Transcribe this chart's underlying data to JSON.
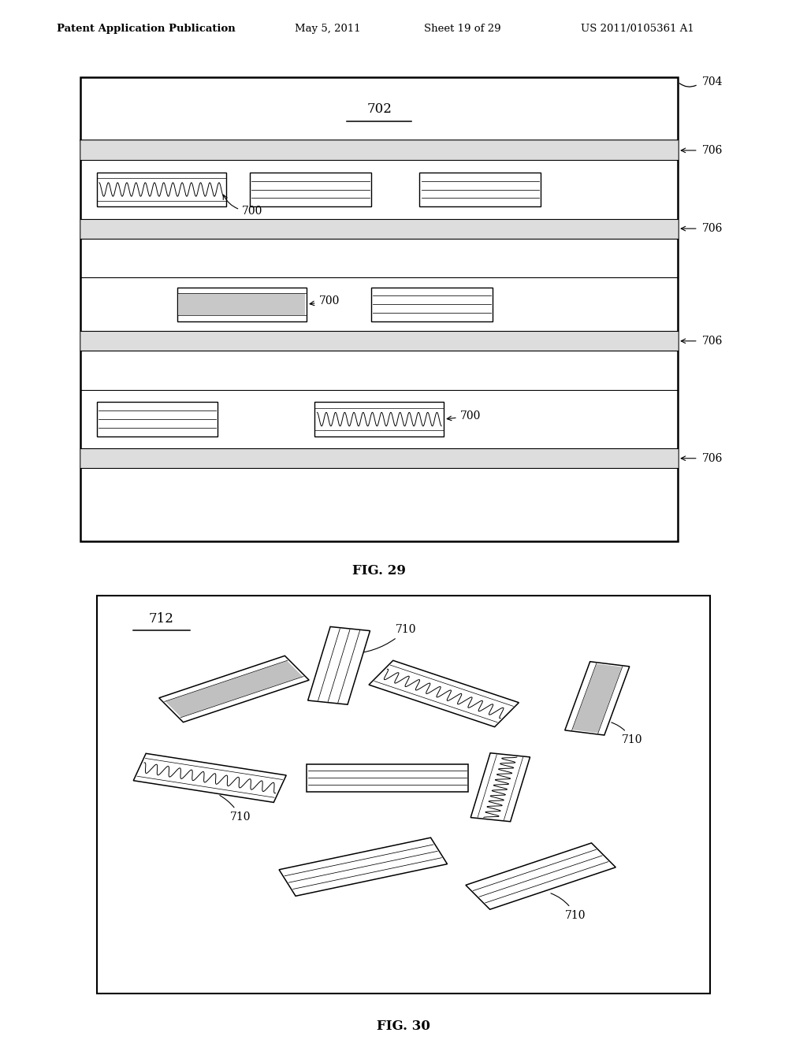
{
  "bg_color": "#ffffff",
  "header_text": "Patent Application Publication",
  "header_date": "May 5, 2011",
  "header_sheet": "Sheet 19 of 29",
  "header_patent": "US 2011/0105361 A1",
  "fig29_caption": "FIG. 29",
  "fig30_caption": "FIG. 30",
  "label_702": "702",
  "label_704": "704",
  "label_706": "706",
  "label_700": "700",
  "label_710": "710",
  "label_712": "712"
}
